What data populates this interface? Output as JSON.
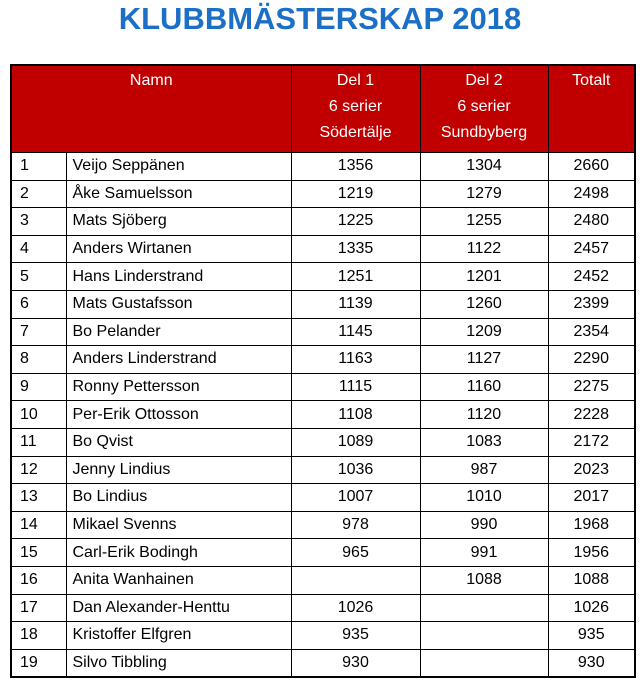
{
  "title": "KLUBBMÄSTERSKAP 2018",
  "header": [
    [
      "Namn"
    ],
    [
      "Del 1",
      "6 serier",
      "Södertälje"
    ],
    [
      "Del 2",
      "6 serier",
      "Sundbyberg"
    ],
    [
      "Totalt"
    ]
  ],
  "rows": [
    [
      1,
      "Veijo Seppänen",
      1356,
      1304,
      2660
    ],
    [
      2,
      "Åke Samuelsson",
      1219,
      1279,
      2498
    ],
    [
      3,
      "Mats Sjöberg",
      1225,
      1255,
      2480
    ],
    [
      4,
      "Anders Wirtanen",
      1335,
      1122,
      2457
    ],
    [
      5,
      "Hans Linderstrand",
      1251,
      1201,
      2452
    ],
    [
      6,
      "Mats Gustafsson",
      1139,
      1260,
      2399
    ],
    [
      7,
      "Bo Pelander",
      1145,
      1209,
      2354
    ],
    [
      8,
      "Anders Linderstrand",
      1163,
      1127,
      2290
    ],
    [
      9,
      "Ronny Pettersson",
      1115,
      1160,
      2275
    ],
    [
      10,
      "Per-Erik Ottosson",
      1108,
      1120,
      2228
    ],
    [
      11,
      "Bo Qvist",
      1089,
      1083,
      2172
    ],
    [
      12,
      "Jenny Lindius",
      1036,
      987,
      2023
    ],
    [
      13,
      "Bo Lindius",
      1007,
      1010,
      2017
    ],
    [
      14,
      "Mikael Svenns",
      978,
      990,
      1968
    ],
    [
      15,
      "Carl-Erik Bodingh",
      965,
      991,
      1956
    ],
    [
      16,
      "Anita Wanhainen",
      null,
      1088,
      1088
    ],
    [
      17,
      "Dan Alexander-Henttu",
      1026,
      null,
      1026
    ],
    [
      18,
      "Kristoffer Elfgren",
      935,
      null,
      935
    ],
    [
      19,
      "Silvo Tibbling",
      930,
      null,
      930
    ]
  ]
}
